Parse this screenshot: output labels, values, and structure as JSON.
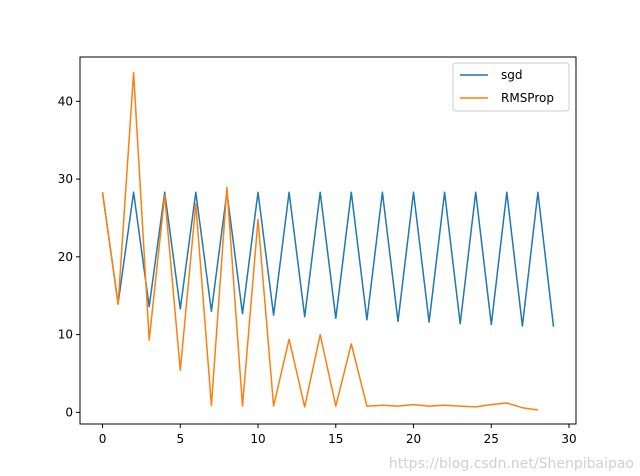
{
  "chart_data": {
    "type": "line",
    "title": "",
    "xlabel": "",
    "ylabel": "",
    "xlim": [
      -1.45,
      30.45
    ],
    "ylim": [
      -1.5,
      45.7
    ],
    "xticks": [
      0,
      5,
      10,
      15,
      20,
      25,
      30
    ],
    "yticks": [
      0,
      10,
      20,
      30,
      40
    ],
    "grid": false,
    "legend_position": "top-right",
    "series": [
      {
        "name": "sgd",
        "color": "#1f77b4",
        "x": [
          0,
          1,
          2,
          3,
          4,
          5,
          6,
          7,
          8,
          9,
          10,
          11,
          12,
          13,
          14,
          15,
          16,
          17,
          18,
          19,
          20,
          21,
          22,
          23,
          24,
          25,
          26,
          27,
          28,
          29
        ],
        "values": [
          28.3,
          14.0,
          28.3,
          13.6,
          28.3,
          13.3,
          28.3,
          13.0,
          28.3,
          12.7,
          28.3,
          12.5,
          28.3,
          12.3,
          28.3,
          12.1,
          28.3,
          11.9,
          28.3,
          11.7,
          28.3,
          11.6,
          28.3,
          11.4,
          28.3,
          11.3,
          28.3,
          11.1,
          28.3,
          11.0
        ]
      },
      {
        "name": "RMSProp",
        "color": "#ff7f0e",
        "x": [
          0,
          1,
          2,
          3,
          4,
          5,
          6,
          7,
          8,
          9,
          10,
          11,
          12,
          13,
          14,
          15,
          16,
          17,
          18,
          19,
          20,
          21,
          22,
          23,
          24,
          25,
          26,
          27,
          28
        ],
        "values": [
          28.3,
          13.9,
          43.7,
          9.3,
          27.9,
          5.4,
          26.8,
          0.9,
          28.9,
          0.8,
          24.8,
          0.8,
          9.4,
          0.7,
          10.0,
          0.8,
          8.8,
          0.8,
          0.9,
          0.8,
          1.0,
          0.8,
          0.9,
          0.8,
          0.7,
          1.0,
          1.2,
          0.6,
          0.3
        ]
      }
    ]
  },
  "watermark": "https://blog.csdn.net/Shenpibaipao"
}
